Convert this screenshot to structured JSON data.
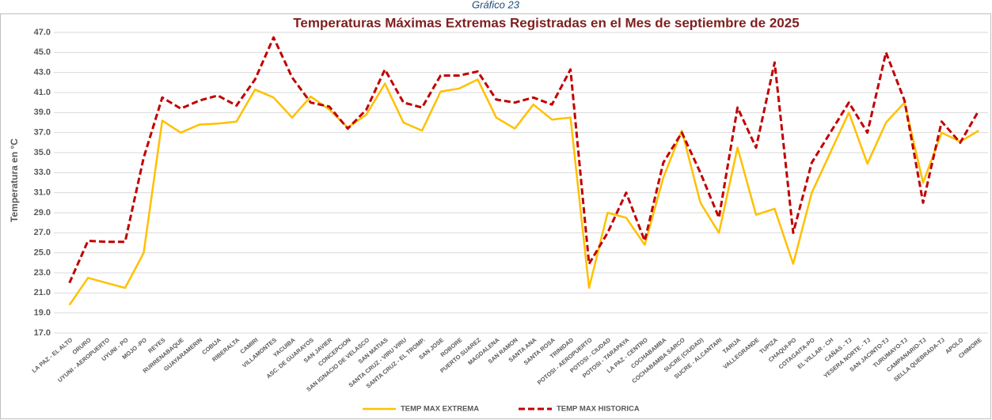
{
  "chart_data": {
    "type": "line",
    "caption": "Gráfico 23",
    "title": "Temperaturas Máximas Extremas Registradas en el Mes de septiembre de 2025",
    "y_label": "Temperatura en °C",
    "categories": [
      "LA PAZ - EL ALTO",
      "ORURO",
      "UYUNI - AEROPUERTO",
      "UYUNI - PO",
      "MOJO -PO",
      "REYES",
      "RURRENABAQUE",
      "GUAYARAMERIN",
      "COBIJA",
      "RIBERALTA",
      "CAMIRI",
      "VILLAMONTES",
      "YACUIBA",
      "ASC. DE GUARAYOS",
      "SAN JAVIER",
      "CONCEPCION",
      "SAN IGNACIO DE VELASCO",
      "SAN MATIAS",
      "SANTA CRUZ - VIRU VIRU",
      "SANTA CRUZ - EL TROMP.",
      "SAN JOSE",
      "ROBORE",
      "PUERTO SUAREZ",
      "MAGDALENA",
      "SAN RAMON",
      "SANTA ANA",
      "SANTA ROSA",
      "TRINIDAD",
      "POTOSI - AEROPUERTO",
      "POTOSI - CIUDAD",
      "POTOSI - TARAPAYA",
      "LA PAZ - CENTRO",
      "COCHABAMBA",
      "COCHABAMBA SARCO",
      "SUCRE (CIUDAD)",
      "SUCRE - ALCANTARI",
      "TARIJA",
      "VALLEGRANDE",
      "TUPIZA",
      "CHAQUI-PO",
      "COTAGAITA-PO",
      "EL VILLAR - CH",
      "CAÑAS - TJ",
      "YESERA NORTE - TJ",
      "SAN JACINTO-TJ",
      "TURUMAYO-TJ",
      "CAMPANARIO-TJ",
      "SELLA QUEBRADA-TJ",
      "APOLO",
      "CHIMORE"
    ],
    "series": [
      {
        "name": "TEMP MAX EXTREMA",
        "color": "#FFC000",
        "dashed": false,
        "values": [
          19.8,
          22.5,
          22,
          21.5,
          25,
          38.2,
          37,
          37.8,
          37.9,
          38.1,
          41.3,
          40.5,
          38.5,
          40.6,
          39.3,
          37.5,
          38.8,
          41.9,
          38,
          37.2,
          41.1,
          41.4,
          42.3,
          38.5,
          37.4,
          39.8,
          38.3,
          38.5,
          21.5,
          29,
          28.5,
          25.8,
          32.5,
          37.2,
          30,
          27,
          35.5,
          28.8,
          29.4,
          23.9,
          31,
          35,
          39,
          33.9,
          38,
          40,
          32,
          37,
          36.1,
          37.2
        ]
      },
      {
        "name": "TEMP MAX HISTORICA",
        "color": "#C00000",
        "dashed": true,
        "values": [
          22,
          26.2,
          26.1,
          26.1,
          34.5,
          40.5,
          39.4,
          40.2,
          40.7,
          39.7,
          42.3,
          46.5,
          42.5,
          40,
          39.6,
          37.4,
          39.3,
          43.3,
          40,
          39.5,
          42.7,
          42.7,
          43.1,
          40.3,
          40,
          40.5,
          39.8,
          43.3,
          23.9,
          27,
          31,
          26.2,
          34,
          37,
          33,
          28.5,
          39.5,
          35.5,
          44,
          27,
          34,
          37,
          40,
          37,
          45,
          40.2,
          30,
          38.1,
          36,
          39.2
        ]
      }
    ],
    "ylim": [
      17,
      47
    ],
    "yticks": [
      {
        "value": 17,
        "label": "17.0"
      },
      {
        "value": 19,
        "label": "19.0"
      },
      {
        "value": 21,
        "label": "21.0"
      },
      {
        "value": 23,
        "label": "23.0"
      },
      {
        "value": 25,
        "label": "25.0"
      },
      {
        "value": 27,
        "label": "27.0"
      },
      {
        "value": 29,
        "label": "29.0"
      },
      {
        "value": 31,
        "label": "31.0"
      },
      {
        "value": 33,
        "label": "33.0"
      },
      {
        "value": 35,
        "label": "35.0"
      },
      {
        "value": 37,
        "label": "37.0"
      },
      {
        "value": 39,
        "label": "39.0"
      },
      {
        "value": 41,
        "label": "41.0"
      },
      {
        "value": 43,
        "label": "43.0"
      },
      {
        "value": 45,
        "label": "45.0"
      },
      {
        "value": 47,
        "label": "47.0"
      }
    ],
    "grid": true,
    "legend": "bottom"
  }
}
